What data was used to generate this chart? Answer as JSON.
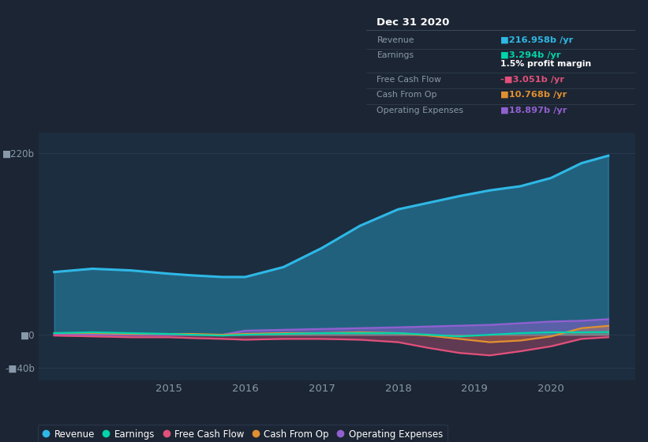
{
  "bg_color": "#1c2533",
  "plot_bg_color": "#1c2d3f",
  "grid_color": "#2a3a50",
  "x_years": [
    2013.5,
    2014.0,
    2014.5,
    2015.0,
    2015.3,
    2015.7,
    2016.0,
    2016.5,
    2017.0,
    2017.5,
    2018.0,
    2018.4,
    2018.8,
    2019.2,
    2019.6,
    2020.0,
    2020.4,
    2020.75
  ],
  "revenue": [
    76,
    80,
    78,
    74,
    72,
    70,
    70,
    82,
    105,
    132,
    152,
    160,
    168,
    175,
    180,
    190,
    208,
    217
  ],
  "earnings": [
    2,
    3,
    2,
    1,
    0,
    -1,
    0,
    1,
    2,
    2,
    2,
    0,
    -2,
    0,
    2,
    3,
    3,
    3.3
  ],
  "free_cash_flow": [
    -1,
    -2,
    -3,
    -3,
    -4,
    -5,
    -6,
    -5,
    -5,
    -6,
    -9,
    -16,
    -22,
    -25,
    -20,
    -14,
    -5,
    -3
  ],
  "cash_from_op": [
    2,
    2,
    1,
    1,
    1,
    0,
    1,
    2,
    2,
    3,
    2,
    -1,
    -5,
    -9,
    -7,
    -2,
    8,
    10.8
  ],
  "operating_expenses": [
    0,
    0,
    0,
    0,
    0,
    0,
    5,
    6,
    7,
    8,
    9,
    10,
    11,
    12,
    14,
    16,
    17,
    18.9
  ],
  "revenue_color": "#2eb8e6",
  "earnings_color": "#00d4aa",
  "fcf_color": "#e0507a",
  "cfo_color": "#e09030",
  "opex_color": "#9060d0",
  "ylim_min": -55,
  "ylim_max": 245,
  "yticks": [
    -40,
    0,
    220
  ],
  "ylabel_texts": [
    "-■40b",
    "■0",
    "■220b"
  ],
  "xticks": [
    2015.0,
    2016.0,
    2017.0,
    2018.0,
    2019.0,
    2020.0
  ],
  "xtick_labels": [
    "2015",
    "2016",
    "2017",
    "2018",
    "2019",
    "2020"
  ],
  "legend_items": [
    "Revenue",
    "Earnings",
    "Free Cash Flow",
    "Cash From Op",
    "Operating Expenses"
  ],
  "legend_colors": [
    "#2eb8e6",
    "#00d4aa",
    "#e0507a",
    "#e09030",
    "#9060d0"
  ],
  "tooltip_bg": "#0d1520",
  "tooltip_border": "#3a4a5a",
  "tooltip_title": "Dec 31 2020",
  "tooltip_rows": [
    {
      "label": "Revenue",
      "val": "■216.958b /yr",
      "val_color": "#2eb8e6",
      "extra": null
    },
    {
      "label": "Earnings",
      "val": "■3.294b /yr",
      "val_color": "#00d4aa",
      "extra": "1.5% profit margin"
    },
    {
      "label": "Free Cash Flow",
      "val": "-■3.051b /yr",
      "val_color": "#e0507a",
      "extra": null
    },
    {
      "label": "Cash From Op",
      "val": "■10.768b /yr",
      "val_color": "#e09030",
      "extra": null
    },
    {
      "label": "Operating Expenses",
      "val": "■18.897b /yr",
      "val_color": "#9060d0",
      "extra": null
    }
  ]
}
